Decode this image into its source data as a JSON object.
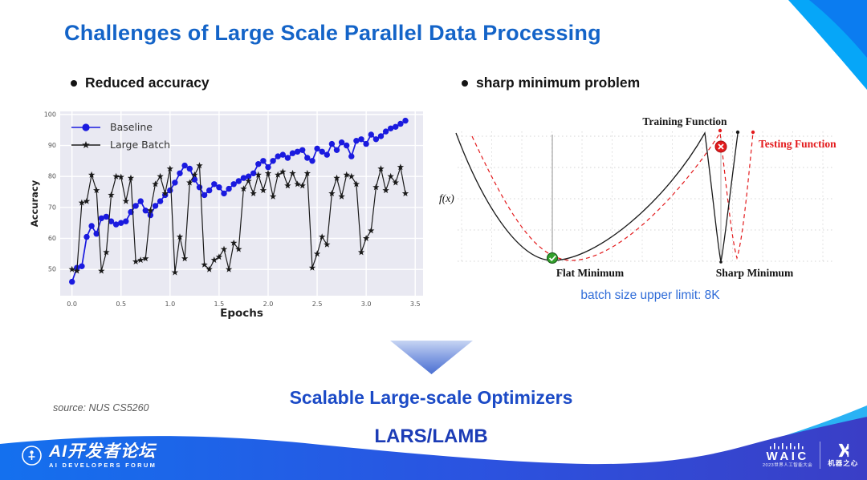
{
  "slide": {
    "title": "Challenges of Large Scale Parallel Data Processing",
    "bullets": {
      "left": "Reduced accuracy",
      "right": "sharp minimum problem"
    },
    "batch_note": "batch size upper limit: 8K",
    "conclusion_line1": "Scalable Large-scale Optimizers",
    "conclusion_line2": "LARS/LAMB",
    "source": "source: NUS CS5260"
  },
  "colors": {
    "title_blue": "#1464c8",
    "note_blue": "#2f6cd8",
    "conclusion_blue": "#1b4ac6",
    "baseline_blue": "#1a1adf",
    "large_batch_black": "#1a1a1a",
    "testing_red": "#e31a1c",
    "flat_min_green": "#33a02c",
    "footer_gradient_left": "#1470ee",
    "footer_gradient_right": "#3a3ec6",
    "swoosh_light_blue": "#2ab2f4",
    "corner_dark_blue": "#0b7cf0",
    "corner_light_blue": "#06a6f8"
  },
  "chart_data": [
    {
      "type": "line",
      "title": "",
      "xlabel": "Epochs",
      "ylabel": "Accuracy",
      "xlim": [
        -0.12,
        3.58
      ],
      "ylim": [
        41.5,
        101
      ],
      "xticks": [
        0,
        0.5,
        1,
        1.5,
        2,
        2.5,
        3,
        3.5
      ],
      "xtick_labels": [
        "0.0",
        "0.5",
        "1.0",
        "1.5",
        "2.0",
        "2.5",
        "3.0",
        "3.5"
      ],
      "yticks": [
        50,
        60,
        70,
        80,
        90,
        100
      ],
      "grid": true,
      "legend_position": "upper left",
      "x": [
        0,
        0.05,
        0.1,
        0.15,
        0.2,
        0.25,
        0.3,
        0.35,
        0.4,
        0.45,
        0.5,
        0.55,
        0.6,
        0.65,
        0.7,
        0.75,
        0.8,
        0.85,
        0.9,
        0.95,
        1,
        1.05,
        1.1,
        1.15,
        1.2,
        1.25,
        1.3,
        1.35,
        1.4,
        1.45,
        1.5,
        1.55,
        1.6,
        1.65,
        1.7,
        1.75,
        1.8,
        1.85,
        1.9,
        1.95,
        2,
        2.05,
        2.1,
        2.15,
        2.2,
        2.25,
        2.3,
        2.35,
        2.4,
        2.45,
        2.5,
        2.55,
        2.6,
        2.65,
        2.7,
        2.75,
        2.8,
        2.85,
        2.9,
        2.95,
        3,
        3.05,
        3.1,
        3.15,
        3.2,
        3.25,
        3.3,
        3.35,
        3.4
      ],
      "series": [
        {
          "name": "Baseline",
          "color": "#1a1adf",
          "marker": "circle",
          "values": [
            46,
            50.5,
            51,
            60.5,
            64,
            61.5,
            66.5,
            67,
            65.5,
            64.5,
            65,
            65.5,
            68.5,
            70.5,
            72,
            69,
            67.5,
            70.5,
            72,
            74,
            75.5,
            78,
            81,
            83.5,
            82.5,
            79,
            76.5,
            74,
            75.5,
            77.5,
            76.5,
            74.5,
            76,
            77.5,
            78.5,
            79.5,
            80,
            81,
            84,
            85,
            83,
            85,
            86.5,
            87,
            86,
            87.5,
            88,
            88.5,
            86,
            85,
            89,
            88,
            87,
            90.5,
            88.5,
            91,
            90,
            86.5,
            91.5,
            92,
            90.5,
            93.5,
            92,
            93,
            94.5,
            95.5,
            96,
            97,
            98
          ]
        },
        {
          "name": "Large Batch",
          "color": "#1a1a1a",
          "marker": "star",
          "values": [
            50,
            49.5,
            71.5,
            72,
            80.5,
            75.5,
            49.5,
            55.5,
            74,
            80,
            79.8,
            72,
            79.5,
            52.5,
            53,
            53.5,
            69,
            77.5,
            80,
            74.5,
            82.5,
            49,
            60.5,
            53.5,
            78,
            80.5,
            83.5,
            51.5,
            50,
            53,
            54,
            56.5,
            50,
            58.5,
            56.5,
            76,
            78.5,
            74.5,
            80.5,
            75.5,
            81,
            73.5,
            80.5,
            81.5,
            77,
            81,
            77.5,
            77,
            81,
            50.5,
            55,
            60.5,
            58,
            74.5,
            79.5,
            73.5,
            80.5,
            80,
            77.5,
            55.5,
            60,
            62.5,
            76.5,
            82.5,
            75.5,
            80,
            78,
            83,
            74.5
          ]
        }
      ]
    },
    {
      "type": "line",
      "title": "Flat vs Sharp Minimum schematic",
      "ylabel": "f(x)",
      "series": [
        {
          "name": "Training Function",
          "color": "#1a1a1a",
          "style": "solid"
        },
        {
          "name": "Testing Function",
          "color": "#e31a1c",
          "style": "dashed"
        }
      ],
      "annotations": [
        {
          "text": "Flat Minimum",
          "marker": "green-check"
        },
        {
          "text": "Sharp Minimum",
          "marker": "red-x"
        }
      ]
    }
  ],
  "diagram": {
    "training_label": "Training Function",
    "testing_label": "Testing Function",
    "fx_label": "f(x)",
    "flat_label": "Flat Minimum",
    "sharp_label": "Sharp Minimum"
  },
  "footer": {
    "forum_title": "AI开发者论坛",
    "forum_subtitle": "AI DEVELOPERS FORUM",
    "waic_title": "WAIC",
    "waic_subtitle": "2023世界人工智能大会",
    "synced_title": "机器之心"
  }
}
